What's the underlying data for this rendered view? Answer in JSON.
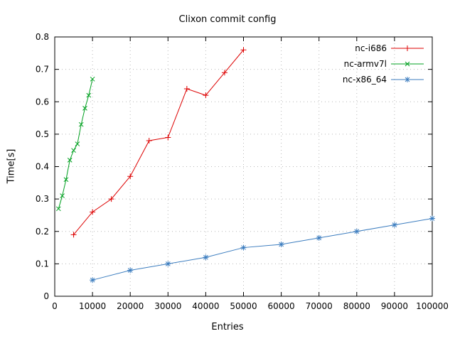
{
  "chart_data": {
    "type": "line",
    "title": "Clixon commit config",
    "xlabel": "Entries",
    "ylabel": "Time[s]",
    "xlim": [
      0,
      100000
    ],
    "ylim": [
      0,
      0.8
    ],
    "xtick_step": 10000,
    "ytick_step": 0.1,
    "grid": true,
    "legend_position": "top-right",
    "background": "#ffffff",
    "grid_color": "#b8b8b8",
    "axis_color": "#000000",
    "series": [
      {
        "name": "nc-i686",
        "color": "#dd0000",
        "marker": "plus",
        "points": [
          [
            5000,
            0.19
          ],
          [
            10000,
            0.26
          ],
          [
            15000,
            0.3
          ],
          [
            20000,
            0.37
          ],
          [
            25000,
            0.48
          ],
          [
            30000,
            0.49
          ],
          [
            35000,
            0.64
          ],
          [
            40000,
            0.62
          ],
          [
            45000,
            0.69
          ],
          [
            50000,
            0.76
          ]
        ]
      },
      {
        "name": "nc-armv7l",
        "color": "#00a020",
        "marker": "cross",
        "points": [
          [
            1000,
            0.27
          ],
          [
            2000,
            0.31
          ],
          [
            3000,
            0.36
          ],
          [
            4000,
            0.42
          ],
          [
            5000,
            0.45
          ],
          [
            6000,
            0.47
          ],
          [
            7000,
            0.53
          ],
          [
            8000,
            0.58
          ],
          [
            9000,
            0.62
          ],
          [
            10000,
            0.67
          ]
        ]
      },
      {
        "name": "nc-x86_64",
        "color": "#3c7dbf",
        "marker": "star",
        "points": [
          [
            10000,
            0.05
          ],
          [
            20000,
            0.08
          ],
          [
            30000,
            0.1
          ],
          [
            40000,
            0.12
          ],
          [
            50000,
            0.15
          ],
          [
            60000,
            0.16
          ],
          [
            70000,
            0.18
          ],
          [
            80000,
            0.2
          ],
          [
            90000,
            0.22
          ],
          [
            100000,
            0.24
          ]
        ]
      }
    ]
  }
}
